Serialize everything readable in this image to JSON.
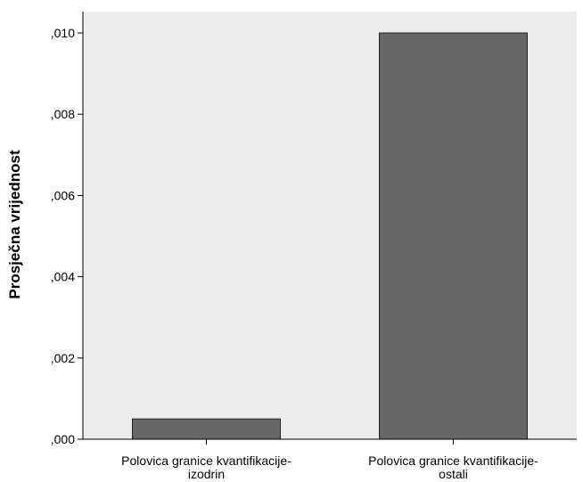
{
  "chart_data": {
    "type": "bar",
    "categories": [
      [
        "Polovica granice kvantifikacije-",
        "izodrin"
      ],
      [
        "Polovica granice kvantifikacije-",
        "ostali"
      ]
    ],
    "values": [
      0.0005,
      0.01
    ],
    "ylabel": "Prosječna vrijednost",
    "xlabel": "",
    "ylim": [
      0,
      0.01
    ],
    "yticks": [
      ",000",
      ",002",
      ",004",
      ",006",
      ",008",
      ",010"
    ],
    "ytick_values": [
      0,
      0.002,
      0.004,
      0.006,
      0.008,
      0.01
    ],
    "grid": false,
    "colors": {
      "plot_background": "#ececec",
      "bar_fill": "#666666",
      "bar_stroke": "#222222",
      "axis": "#000000"
    }
  }
}
